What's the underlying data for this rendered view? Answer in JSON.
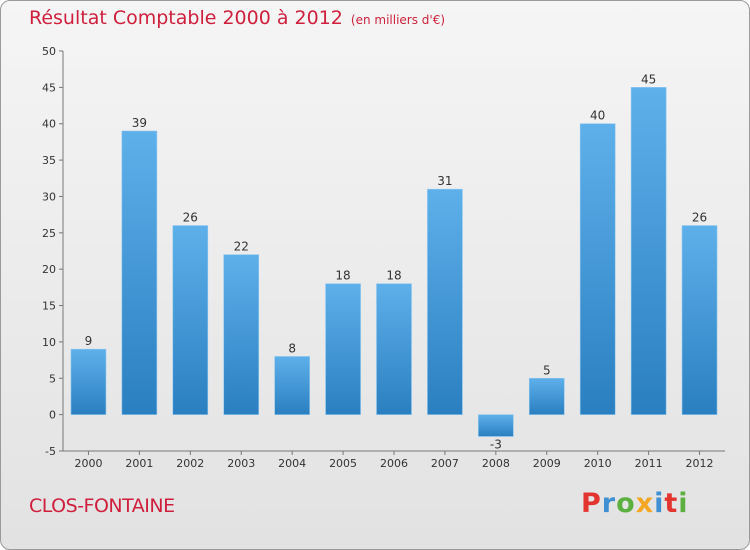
{
  "header": {
    "title": "Résultat Comptable 2000 à 2012",
    "subtitle": "(en milliers d'€)"
  },
  "footer": {
    "commune": "CLOS-FONTAINE",
    "logo": "Proxiti"
  },
  "colors": {
    "title": "#cf1f3d",
    "bar_top": "#5eb0ea",
    "bar_bottom": "#2a7fc0",
    "logo_letters": [
      "#e3342f",
      "#3f8fd2",
      "#5bb040",
      "#f5a623",
      "#3f8fd2",
      "#e3342f",
      "#5bb040"
    ]
  },
  "chart_data": {
    "type": "bar",
    "title": "Résultat Comptable 2000 à 2012",
    "subtitle": "(en milliers d'€)",
    "categories": [
      "2000",
      "2001",
      "2002",
      "2003",
      "2004",
      "2005",
      "2006",
      "2007",
      "2008",
      "2009",
      "2010",
      "2011",
      "2012"
    ],
    "values": [
      9,
      39,
      26,
      22,
      8,
      18,
      18,
      31,
      -3,
      5,
      40,
      45,
      26
    ],
    "ylim": [
      -5,
      50
    ],
    "yticks": [
      -5,
      0,
      5,
      10,
      15,
      20,
      25,
      30,
      35,
      40,
      45,
      50
    ],
    "xlabel": "",
    "ylabel": "",
    "grid": false,
    "data_labels": true
  }
}
